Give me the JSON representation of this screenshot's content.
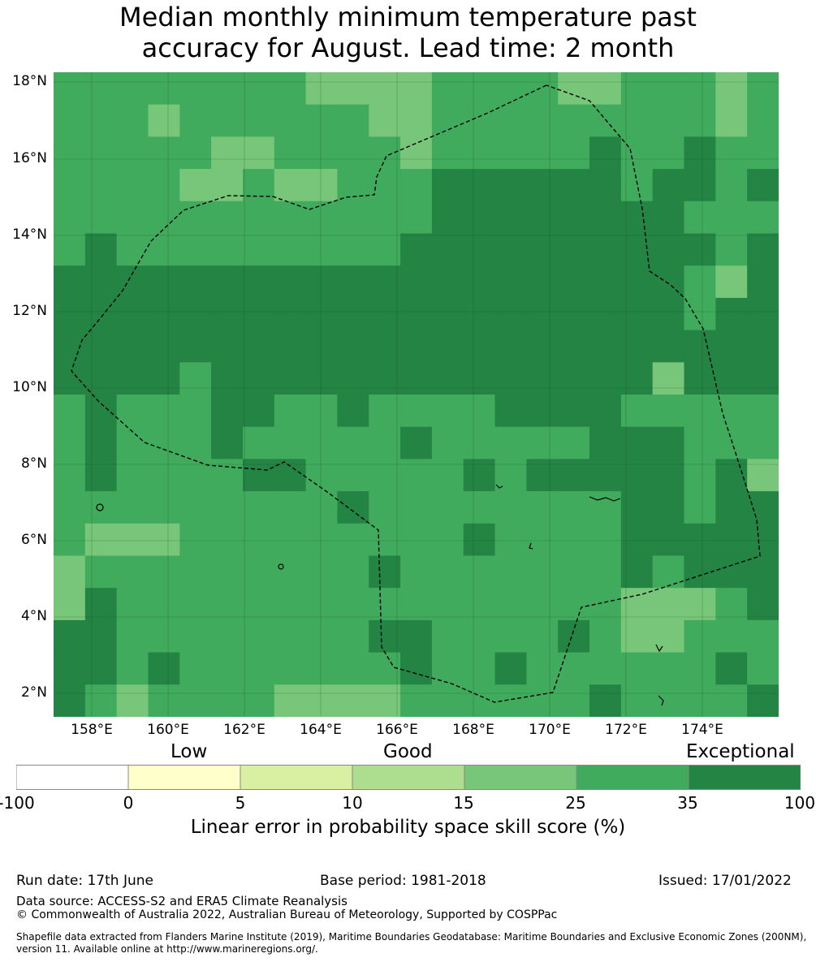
{
  "title": {
    "line1": "Median monthly minimum temperature past",
    "line2": "accuracy for August. Lead time: 2 month"
  },
  "map": {
    "lat_labels": [
      "18°N",
      "16°N",
      "14°N",
      "12°N",
      "10°N",
      "8°N",
      "6°N",
      "4°N",
      "2°N"
    ],
    "lon_labels": [
      "158°E",
      "160°E",
      "162°E",
      "164°E",
      "166°E",
      "168°E",
      "170°E",
      "172°E",
      "174°E"
    ],
    "colors": {
      "c15": "#78c679",
      "c25": "#41ab5d",
      "c35": "#238443",
      "grid": "#1f4d2a"
    },
    "grid_rows": [
      "BBBBBBBBAAAAAAAAAABBBBBBBBBBBBBBBBBBBBBBBBBBBBBBBBBBBBBAAAAAABBBBBBBBBBBBBBBBBBAAAAAAB",
      "BBBBBBBBBBBBBBBBBBBBBBBBBBBBBBBBBBBBBBBBBBBBBBBBBBBBBBBBBBBBBBBBBBBBBBBBBBBBBBBBBBBBBBBB",
      "BBBBBBBBAAAABBBBBBBBBBBBBBBBBBBBBBBBBBBBBBBBBBBBBBBBBBBBBBBBBBBBBBBBBBBBBBBBBBBBBBBBB",
      "BBBBBBBBBBBBBBBBBBBBBBBBBBBBBBBBBBBBBBBBBBBBBBBBBBBBBBBBBBBBBBBBBBBBBBBBBBBBBBBBBBBBB"
    ],
    "grid": [
      "BBBBBBBBBAAAAABBBBBBBBABBB",
      "BBBBBBBBBBBBBBBBBBBBBBBBBB",
      "BBBBBBBBBBBBBBBBBBBBBBBBBB",
      "BBBBBBBBBBBBBBBBBBBBBBBBBB"
    ],
    "cells": [
      "BBBBBBBBBAAAABBBBBBABBBBAB",
      "BBBABBBBBBBBABBBBBBBBBBABB",
      "BBBBBBAABBBBAAABBBBBBCBBCB",
      "BBBBBAAABAABAABBCCCCCCBCBC",
      "BBBBBBBBBBBBBBBBBBBBBBBBBB",
      "BCBBBBBBBBBBBBBBBBBBBBBBBC",
      "CCCCCCCCCCCCCCCCCCCCCCCCCC",
      "CCCCCCCCCCCCCCCCCCCCCCCCCC",
      "CCCCCCCCCCCCCCCCCCCCCCCCCC",
      "CCCCCCCCCCCCCCCCCCCCCCCCCC",
      "CCCCCCCCCCCCCCCCCCCCCCCCCC",
      "CCCCCCCCCCCCCCCCCCCCCCCCCC",
      "CCCCCCCCCCCCCCCCCCCCCCCCCC",
      "CCCCCCCCCCCCCCCCCCCCCCCCCC",
      "CCCCCCCCCCCCCCCCCCCCCCCCCC",
      "CCCCCCCCCCCCCCCCCCCCCCCCCC"
    ],
    "rows": [
      "BBBBBBBBBAAAABBBBBBABBBBAB",
      "BBBABBBBBBBBBBBBBBBBBBBABB",
      "BBBBBBAABBBABBBBBBBBBBBBCB",
      "BBBBBAAABAABBBBBBBBBBBCBCC",
      "BBBBBBBBBBBBBBBBBBBBBBBBBB",
      "BCBBBBBBBBBBBBBBBBBBBBBBBC",
      "CCCCCCCCCCCCCCCCCCCCCCCCCC",
      "CCCCCCCCCCCCCCCCCCCCCCCCCC"
    ],
    "skill_cells": [
      "BBBBBBBBAAAAABBBBBBBAAABBBBBBBBBBBBAAAAAB",
      "BBBBBBBBBBBBBBBBBBBBBBBBBBBBBBBBBBBBBBBBB"
    ]
  },
  "grid_data": {
    "comment_free": true,
    "lon_start": 157.0,
    "lat_top": 18.3,
    "cell_deg": 0.83,
    "rows": [
      "BBBBBBBBBAAAABBBBBBABBBBAB",
      "BBBABBBBBBBBBBBBBBBBBBBABB",
      "BBBBBBAABBBABBBBBBBBCBBCBB",
      "BBBBBAAABAABBCCCCCCBBCCCBC",
      "BBBBBBBBBBBBBBCCCCCCCCBBBB",
      "BCBBBBBBBBBBCCCCCCCCCCBCBC",
      "CCCCCCCCCCCCCCCCCCCCCCCBCC",
      "CCCCCCCCCCCCCCCCCCCCCCCCCC"
    ]
  },
  "colorbar": {
    "quality_labels": [
      "Low",
      "Good",
      "Exceptional"
    ],
    "ticks": [
      "-100",
      "0",
      "5",
      "10",
      "15",
      "25",
      "35",
      "100"
    ],
    "colors": [
      "#ffffff",
      "#ffffcc",
      "#d9f0a3",
      "#addd8e",
      "#78c679",
      "#41ab5d",
      "#238443"
    ],
    "label": "Linear error in probability space skill score (%)"
  },
  "footer": {
    "run_date": "Run date: 17th June",
    "base_period": "Base period: 1981-2018",
    "issued": "Issued: 17/01/2022",
    "data_source": "Data source: ACCESS-S2 and ERA5 Climate Reanalysis",
    "copyright": "© Commonwealth of Australia 2022, Australian Bureau of Meteorology, Supported by COSPPac",
    "shapefile_line1": "Shapefile data extracted from Flanders Marine Institute (2019), Maritime Boundaries Geodatabase: Maritime Boundaries and Exclusive Economic Zones (200NM),",
    "shapefile_line2": "version 11. Available online at http://www.marineregions.org/."
  }
}
